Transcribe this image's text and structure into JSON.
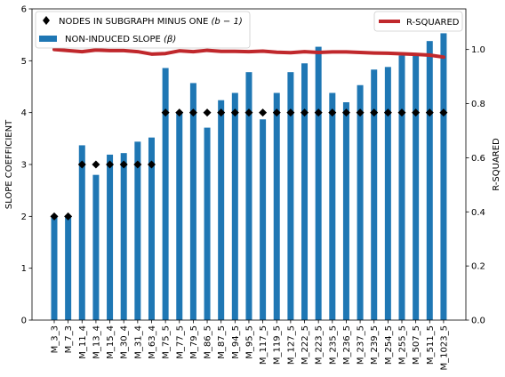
{
  "chart_data": {
    "type": "bar",
    "categories": [
      "M_3_3",
      "M_7_3",
      "M_11_4",
      "M_13_4",
      "M_15_4",
      "M_30_4",
      "M_31_4",
      "M_63_4",
      "M_75_5",
      "M_77_5",
      "M_79_5",
      "M_86_5",
      "M_87_5",
      "M_94_5",
      "M_95_5",
      "M_117_5",
      "M_119_5",
      "M_127_5",
      "M_222_5",
      "M_223_5",
      "M_235_5",
      "M_236_5",
      "M_237_5",
      "M_239_5",
      "M_254_5",
      "M_255_5",
      "M_507_5",
      "M_511_5",
      "M_1023_5"
    ],
    "series": [
      {
        "name": "NON-INDUCED SLOPE (β)",
        "type": "bar",
        "axis": "left",
        "color": "#1f77b4",
        "values": [
          2.0,
          2.0,
          3.37,
          2.8,
          3.19,
          3.22,
          3.44,
          3.52,
          4.86,
          4.0,
          4.57,
          3.71,
          4.24,
          4.38,
          4.78,
          3.87,
          4.38,
          4.78,
          4.95,
          5.27,
          4.38,
          4.2,
          4.53,
          4.83,
          4.88,
          5.1,
          5.13,
          5.38,
          5.53
        ]
      },
      {
        "name": "NODES IN SUBGRAPH MINUS ONE (b − 1)",
        "type": "scatter",
        "axis": "left",
        "marker": "diamond",
        "color": "#000000",
        "values": [
          2,
          2,
          3,
          3,
          3,
          3,
          3,
          3,
          4,
          4,
          4,
          4,
          4,
          4,
          4,
          4,
          4,
          4,
          4,
          4,
          4,
          4,
          4,
          4,
          4,
          4,
          4,
          4,
          4
        ]
      },
      {
        "name": "R-SQUARED",
        "type": "line",
        "axis": "right",
        "color": "#c0282c",
        "values": [
          1.0,
          0.996,
          0.992,
          0.998,
          0.996,
          0.996,
          0.992,
          0.983,
          0.985,
          0.995,
          0.992,
          0.997,
          0.993,
          0.993,
          0.992,
          0.994,
          0.99,
          0.988,
          0.992,
          0.989,
          0.991,
          0.991,
          0.989,
          0.987,
          0.986,
          0.984,
          0.982,
          0.979,
          0.972
        ]
      }
    ],
    "ylabel": "SLOPE COEFFICIENT",
    "ylim": [
      0,
      6
    ],
    "yticks": [
      "0",
      "1",
      "2",
      "3",
      "4",
      "5",
      "6"
    ],
    "y2label": "R-SQUARED",
    "y2lim": [
      0,
      1.15
    ],
    "y2ticks": [
      "0.0",
      "0.2",
      "0.4",
      "0.6",
      "0.8",
      "1.0"
    ],
    "legend_left": {
      "placement": "top-left",
      "entries": [
        {
          "label_text": "NODES IN SUBGRAPH MINUS ONE ",
          "label_math": "(b − 1)"
        },
        {
          "label_text": "NON-INDUCED SLOPE ",
          "label_math": "(β)"
        }
      ]
    },
    "legend_right": {
      "placement": "top-right",
      "entries": [
        {
          "label_text": "R-SQUARED"
        }
      ]
    },
    "grid": false
  }
}
